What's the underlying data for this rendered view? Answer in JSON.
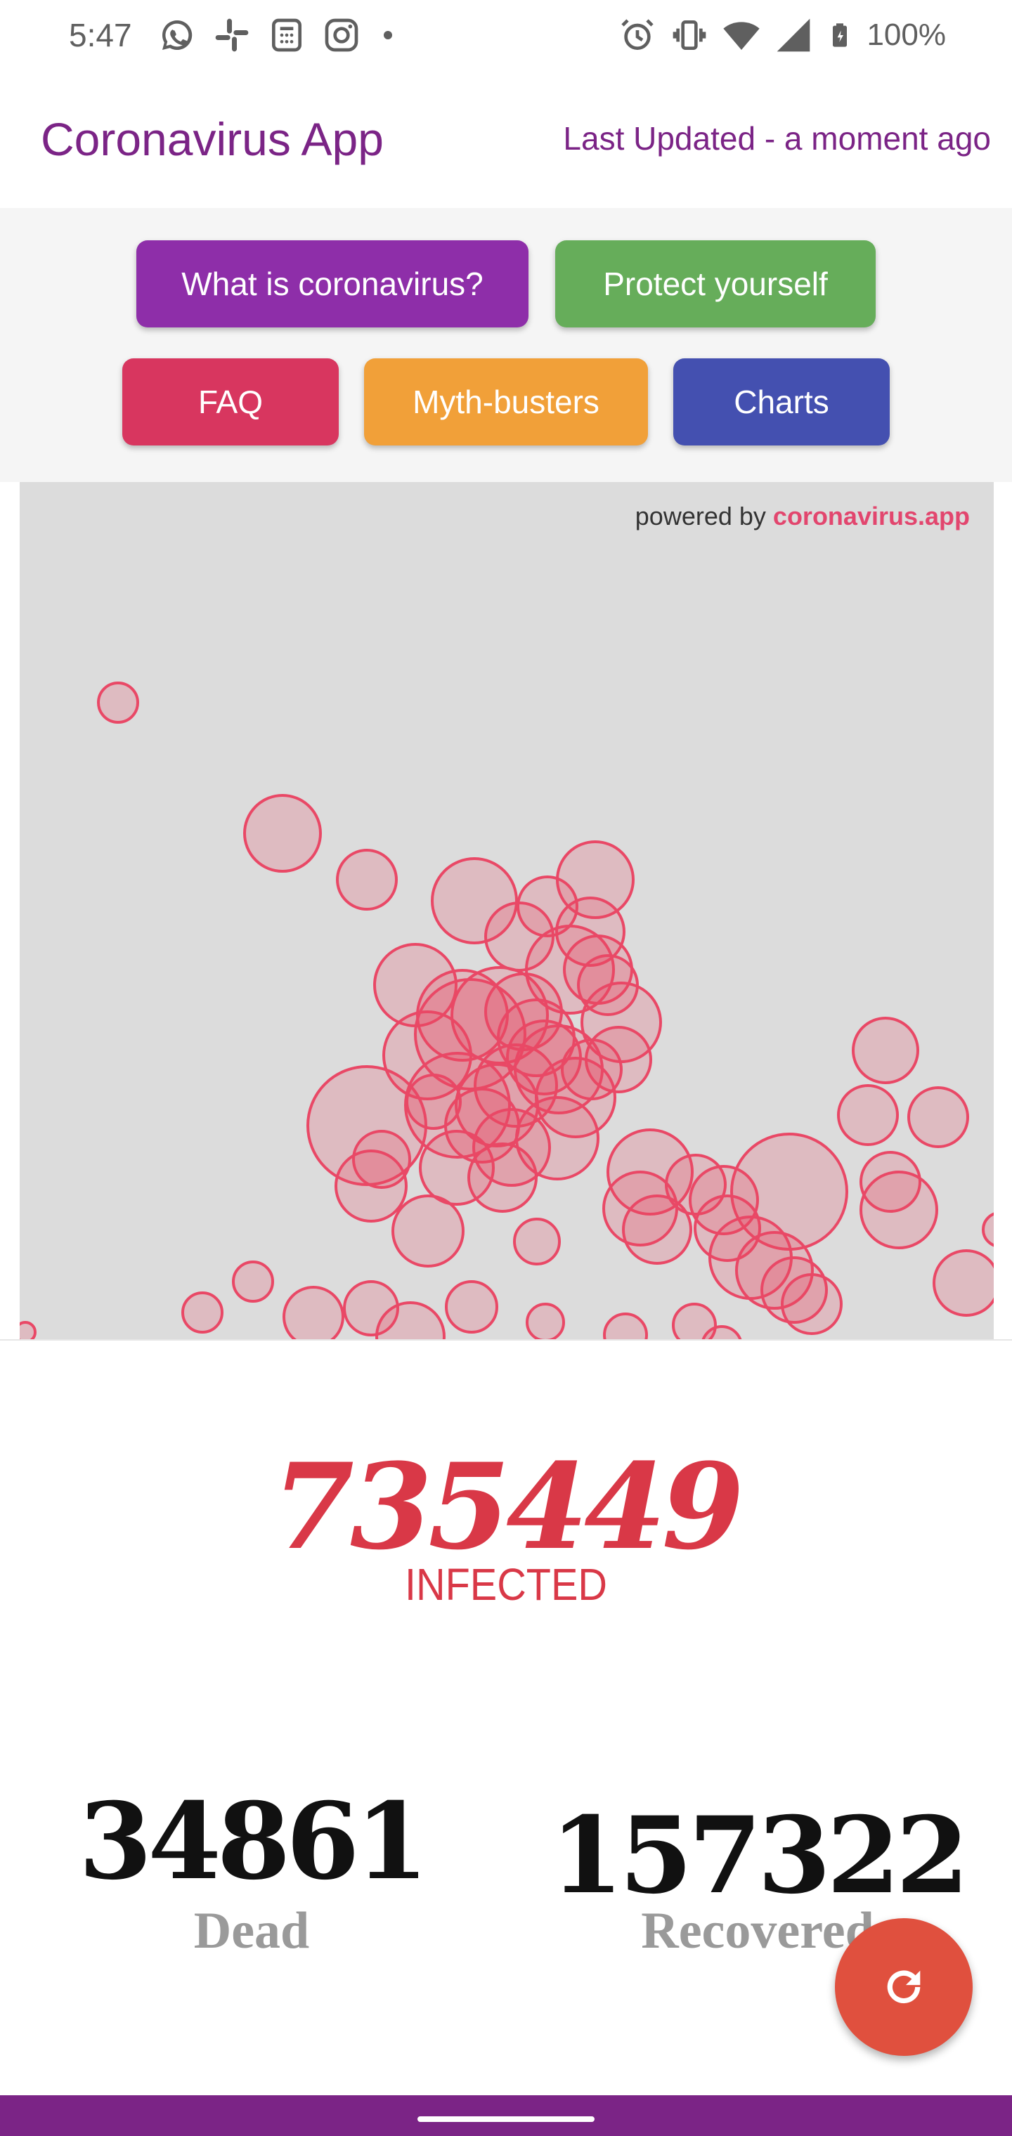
{
  "status_bar": {
    "time": "5:47",
    "battery": "100%",
    "left_icons": [
      "whatsapp-icon",
      "slack-icon",
      "calculator-icon",
      "instagram-icon"
    ],
    "right_icons": [
      "alarm-icon",
      "vibrate-icon",
      "wifi-icon",
      "signal-icon",
      "battery-icon"
    ]
  },
  "app_bar": {
    "title": "Coronavirus App",
    "last_updated": "Last Updated - a moment ago"
  },
  "nav": {
    "buttons": [
      {
        "label": "What is coronavirus?",
        "color": "#8e2ea9"
      },
      {
        "label": "Protect yourself",
        "color": "#66ad5a"
      },
      {
        "label": "FAQ",
        "color": "#d8365f"
      },
      {
        "label": "Myth-busters",
        "color": "#f1a039"
      },
      {
        "label": "Charts",
        "color": "#4450b0"
      }
    ]
  },
  "map": {
    "powered_by_prefix": "powered by",
    "powered_by_link": "coronavirus.app",
    "bubble_color": "#e94866",
    "background": "#dcdcdc"
  },
  "stats": {
    "infected_value": "735449",
    "infected_label": "INFECTED",
    "dead_value": "34861",
    "dead_label": "Dead",
    "recovered_value": "157322",
    "recovered_label": "Recovered"
  },
  "fab": {
    "icon": "refresh-icon",
    "color": "#e0503e"
  },
  "theme": {
    "primary": "#7b2486",
    "accent": "#d93847"
  }
}
